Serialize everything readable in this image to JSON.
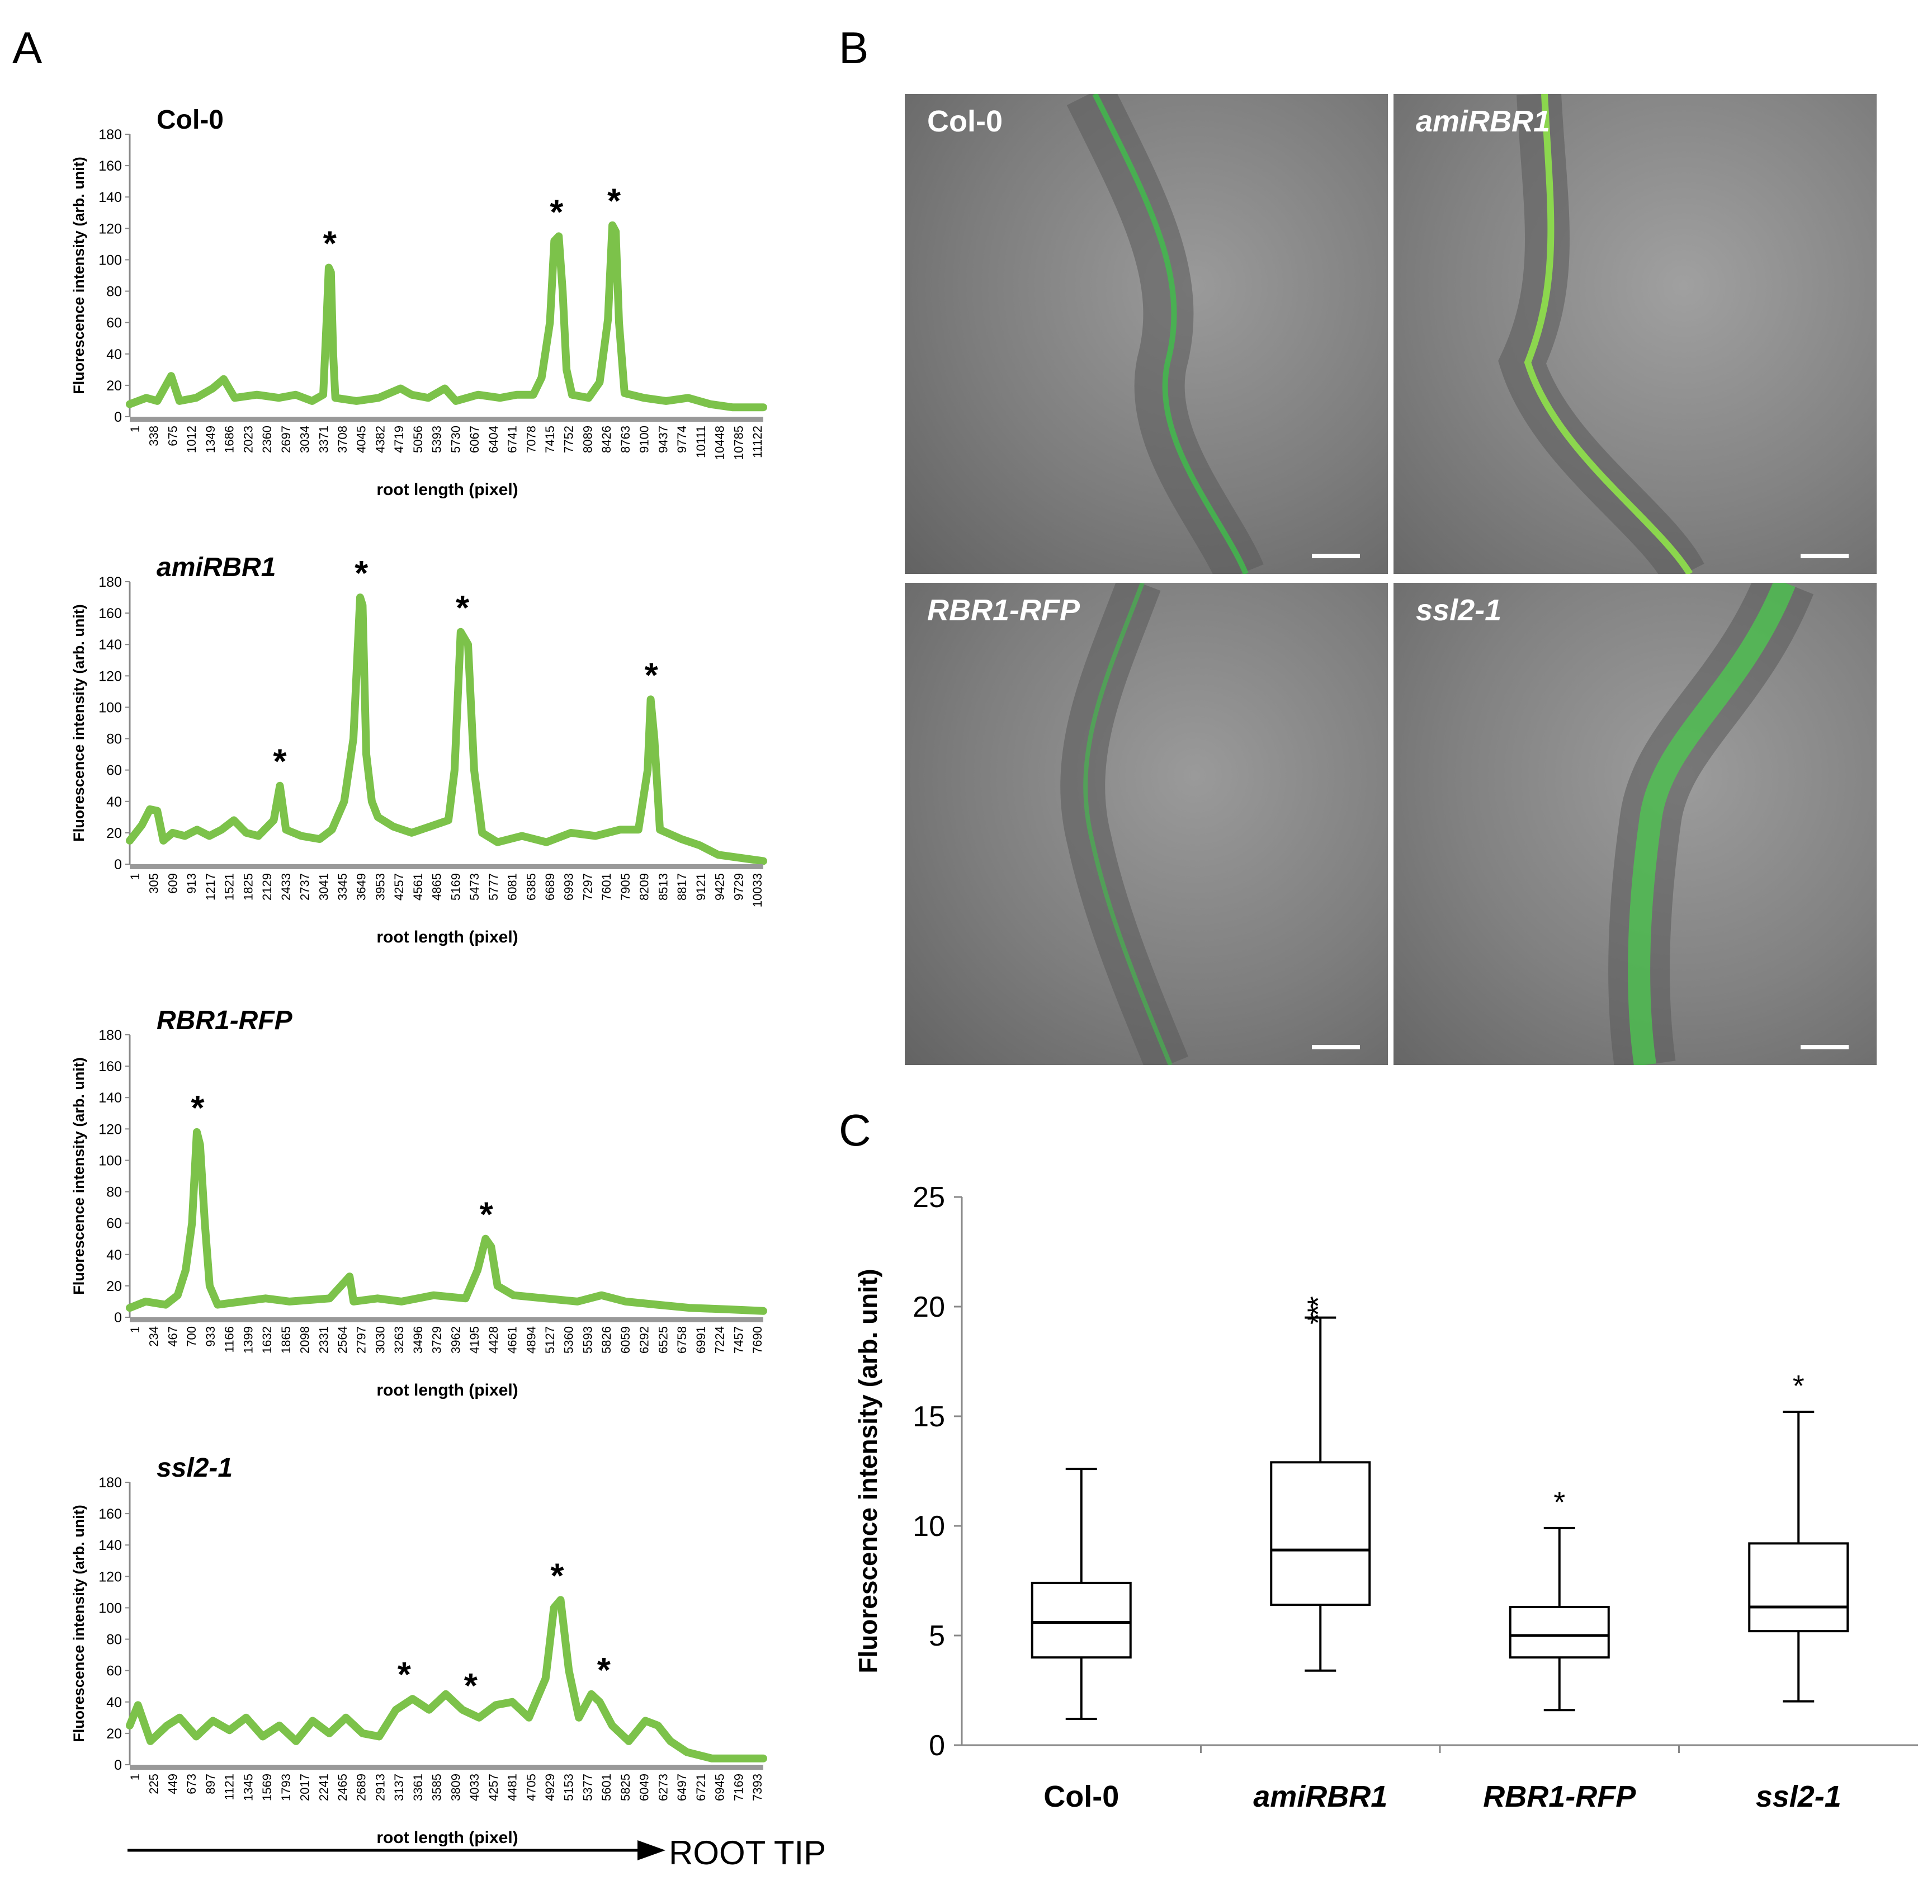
{
  "panels": {
    "A": "A",
    "B": "B",
    "C": "C"
  },
  "panel_a": {
    "ylabel": "Fluorescence intensity (arb. unit)",
    "xlabel": "root length (pixel)",
    "yticks": [
      "0",
      "20",
      "40",
      "60",
      "80",
      "100",
      "120",
      "140",
      "160",
      "180"
    ],
    "arrow_label": "ROOT TIP",
    "line_color": "#7cc24a"
  },
  "chart_data": [
    {
      "type": "line",
      "title": "Col-0",
      "title_italic": false,
      "xlabel": "root length (pixel)",
      "ylabel": "Fluorescence intensity (arb. unit)",
      "ylim": [
        0,
        180
      ],
      "xlim": [
        1,
        11459
      ],
      "x_tick_labels": [
        "1",
        "338",
        "675",
        "1012",
        "1349",
        "1686",
        "2023",
        "2360",
        "2697",
        "3034",
        "3371",
        "3708",
        "4045",
        "4382",
        "4719",
        "5056",
        "5393",
        "5730",
        "6067",
        "6404",
        "6741",
        "7078",
        "7415",
        "7752",
        "8089",
        "8426",
        "8763",
        "9100",
        "9437",
        "9774",
        "10111",
        "10448",
        "10785",
        "11122"
      ],
      "series": [
        {
          "values": [
            [
              1,
              8
            ],
            [
              300,
              12
            ],
            [
              500,
              10
            ],
            [
              750,
              26
            ],
            [
              900,
              10
            ],
            [
              1200,
              12
            ],
            [
              1500,
              18
            ],
            [
              1700,
              24
            ],
            [
              1900,
              12
            ],
            [
              2300,
              14
            ],
            [
              2700,
              12
            ],
            [
              3000,
              14
            ],
            [
              3300,
              10
            ],
            [
              3500,
              14
            ],
            [
              3560,
              60
            ],
            [
              3600,
              95
            ],
            [
              3640,
              92
            ],
            [
              3680,
              40
            ],
            [
              3720,
              12
            ],
            [
              4100,
              10
            ],
            [
              4500,
              12
            ],
            [
              4900,
              18
            ],
            [
              5100,
              14
            ],
            [
              5400,
              12
            ],
            [
              5700,
              18
            ],
            [
              5900,
              10
            ],
            [
              6300,
              14
            ],
            [
              6700,
              12
            ],
            [
              7000,
              14
            ],
            [
              7300,
              14
            ],
            [
              7450,
              25
            ],
            [
              7600,
              60
            ],
            [
              7680,
              112
            ],
            [
              7760,
              115
            ],
            [
              7830,
              80
            ],
            [
              7900,
              30
            ],
            [
              8000,
              14
            ],
            [
              8300,
              12
            ],
            [
              8500,
              22
            ],
            [
              8650,
              62
            ],
            [
              8730,
              122
            ],
            [
              8790,
              118
            ],
            [
              8850,
              60
            ],
            [
              8950,
              15
            ],
            [
              9300,
              12
            ],
            [
              9700,
              10
            ],
            [
              10100,
              12
            ],
            [
              10500,
              8
            ],
            [
              10900,
              6
            ],
            [
              11459,
              6
            ]
          ]
        }
      ],
      "asterisks_at_x": [
        3620,
        7720,
        8760
      ]
    },
    {
      "type": "line",
      "title": "amiRBR1",
      "title_italic": true,
      "xlabel": "root length (pixel)",
      "ylabel": "Fluorescence intensity (arb. unit)",
      "ylim": [
        0,
        180
      ],
      "xlim": [
        1,
        10337
      ],
      "x_tick_labels": [
        "1",
        "305",
        "609",
        "913",
        "1217",
        "1521",
        "1825",
        "2129",
        "2433",
        "2737",
        "3041",
        "3345",
        "3649",
        "3953",
        "4257",
        "4561",
        "4865",
        "5169",
        "5473",
        "5777",
        "6081",
        "6385",
        "6689",
        "6993",
        "7297",
        "7601",
        "7905",
        "8209",
        "8513",
        "8817",
        "9121",
        "9425",
        "9729",
        "10033"
      ],
      "series": [
        {
          "values": [
            [
              1,
              15
            ],
            [
              200,
              25
            ],
            [
              330,
              35
            ],
            [
              450,
              34
            ],
            [
              550,
              15
            ],
            [
              700,
              20
            ],
            [
              900,
              18
            ],
            [
              1100,
              22
            ],
            [
              1300,
              18
            ],
            [
              1500,
              22
            ],
            [
              1700,
              28
            ],
            [
              1900,
              20
            ],
            [
              2100,
              18
            ],
            [
              2350,
              28
            ],
            [
              2450,
              50
            ],
            [
              2550,
              22
            ],
            [
              2800,
              18
            ],
            [
              3100,
              16
            ],
            [
              3300,
              22
            ],
            [
              3500,
              40
            ],
            [
              3650,
              80
            ],
            [
              3760,
              170
            ],
            [
              3800,
              165
            ],
            [
              3860,
              70
            ],
            [
              3950,
              40
            ],
            [
              4050,
              30
            ],
            [
              4300,
              24
            ],
            [
              4600,
              20
            ],
            [
              4900,
              24
            ],
            [
              5200,
              28
            ],
            [
              5300,
              60
            ],
            [
              5400,
              148
            ],
            [
              5520,
              140
            ],
            [
              5620,
              60
            ],
            [
              5750,
              20
            ],
            [
              6000,
              14
            ],
            [
              6400,
              18
            ],
            [
              6800,
              14
            ],
            [
              7200,
              20
            ],
            [
              7600,
              18
            ],
            [
              8000,
              22
            ],
            [
              8300,
              22
            ],
            [
              8450,
              60
            ],
            [
              8500,
              105
            ],
            [
              8560,
              80
            ],
            [
              8650,
              22
            ],
            [
              9000,
              16
            ],
            [
              9300,
              12
            ],
            [
              9600,
              6
            ],
            [
              10337,
              2
            ]
          ]
        }
      ],
      "asterisks_at_x": [
        2450,
        3780,
        5430,
        8510
      ]
    },
    {
      "type": "line",
      "title": "RBR1-RFP",
      "title_italic": true,
      "xlabel": "root length (pixel)",
      "ylabel": "Fluorescence intensity (arb. unit)",
      "ylim": [
        0,
        180
      ],
      "xlim": [
        1,
        7923
      ],
      "x_tick_labels": [
        "1",
        "234",
        "467",
        "700",
        "933",
        "1166",
        "1399",
        "1632",
        "1865",
        "2098",
        "2331",
        "2564",
        "2797",
        "3030",
        "3263",
        "3496",
        "3729",
        "3962",
        "4195",
        "4428",
        "4661",
        "4894",
        "5127",
        "5360",
        "5593",
        "5826",
        "6059",
        "6292",
        "6525",
        "6758",
        "6991",
        "7224",
        "7457",
        "7690"
      ],
      "series": [
        {
          "values": [
            [
              1,
              6
            ],
            [
              200,
              10
            ],
            [
              450,
              8
            ],
            [
              600,
              14
            ],
            [
              700,
              30
            ],
            [
              780,
              60
            ],
            [
              840,
              118
            ],
            [
              880,
              110
            ],
            [
              940,
              60
            ],
            [
              1000,
              20
            ],
            [
              1100,
              8
            ],
            [
              1400,
              10
            ],
            [
              1700,
              12
            ],
            [
              2000,
              10
            ],
            [
              2500,
              12
            ],
            [
              2750,
              26
            ],
            [
              2800,
              10
            ],
            [
              3100,
              12
            ],
            [
              3400,
              10
            ],
            [
              3800,
              14
            ],
            [
              4200,
              12
            ],
            [
              4350,
              30
            ],
            [
              4450,
              50
            ],
            [
              4520,
              45
            ],
            [
              4600,
              20
            ],
            [
              4800,
              14
            ],
            [
              5200,
              12
            ],
            [
              5600,
              10
            ],
            [
              5900,
              14
            ],
            [
              6200,
              10
            ],
            [
              6600,
              8
            ],
            [
              7000,
              6
            ],
            [
              7500,
              5
            ],
            [
              7923,
              4
            ]
          ]
        }
      ],
      "asterisks_at_x": [
        850,
        4460
      ]
    },
    {
      "type": "line",
      "title": "ssl2-1",
      "title_italic": true,
      "xlabel": "root length (pixel)",
      "ylabel": "Fluorescence intensity (arb. unit)",
      "ylim": [
        0,
        180
      ],
      "xlim": [
        1,
        7617
      ],
      "x_tick_labels": [
        "1",
        "225",
        "449",
        "673",
        "897",
        "1121",
        "1345",
        "1569",
        "1793",
        "2017",
        "2241",
        "2465",
        "2689",
        "2913",
        "3137",
        "3361",
        "3585",
        "3809",
        "4033",
        "4257",
        "4481",
        "4705",
        "4929",
        "5153",
        "5377",
        "5601",
        "5825",
        "6049",
        "6273",
        "6497",
        "6721",
        "6945",
        "7169",
        "7393"
      ],
      "series": [
        {
          "values": [
            [
              1,
              25
            ],
            [
              100,
              38
            ],
            [
              250,
              15
            ],
            [
              450,
              25
            ],
            [
              600,
              30
            ],
            [
              800,
              18
            ],
            [
              1000,
              28
            ],
            [
              1200,
              22
            ],
            [
              1400,
              30
            ],
            [
              1600,
              18
            ],
            [
              1800,
              25
            ],
            [
              2000,
              15
            ],
            [
              2200,
              28
            ],
            [
              2400,
              20
            ],
            [
              2600,
              30
            ],
            [
              2800,
              20
            ],
            [
              3000,
              18
            ],
            [
              3200,
              35
            ],
            [
              3400,
              42
            ],
            [
              3600,
              35
            ],
            [
              3800,
              45
            ],
            [
              4000,
              35
            ],
            [
              4200,
              30
            ],
            [
              4400,
              38
            ],
            [
              4600,
              40
            ],
            [
              4800,
              30
            ],
            [
              5000,
              55
            ],
            [
              5100,
              100
            ],
            [
              5180,
              105
            ],
            [
              5280,
              60
            ],
            [
              5400,
              30
            ],
            [
              5550,
              45
            ],
            [
              5650,
              40
            ],
            [
              5800,
              25
            ],
            [
              6000,
              15
            ],
            [
              6200,
              28
            ],
            [
              6350,
              25
            ],
            [
              6500,
              15
            ],
            [
              6700,
              8
            ],
            [
              7000,
              4
            ],
            [
              7617,
              4
            ]
          ]
        }
      ],
      "asterisks_at_x": [
        3300,
        4100,
        5140,
        5700
      ]
    },
    {
      "type": "box",
      "ylabel": "Fluorescence intensity (arb. unit)",
      "ylim": [
        0,
        25
      ],
      "yticks": [
        "0",
        "5",
        "10",
        "15",
        "20",
        "25"
      ],
      "categories": [
        "Col-0",
        "amiRBR1",
        "RBR1-RFP",
        "ssl2-1"
      ],
      "categories_italic": [
        false,
        true,
        true,
        true
      ],
      "boxes": [
        {
          "min": 1.2,
          "q1": 4.0,
          "median": 5.6,
          "q3": 7.4,
          "max": 12.6,
          "significance": ""
        },
        {
          "min": 3.4,
          "q1": 6.4,
          "median": 8.9,
          "q3": 12.9,
          "max": 19.5,
          "significance": "***"
        },
        {
          "min": 1.6,
          "q1": 4.0,
          "median": 5.0,
          "q3": 6.3,
          "max": 9.9,
          "significance": "*"
        },
        {
          "min": 2.0,
          "q1": 5.2,
          "median": 6.3,
          "q3": 9.2,
          "max": 15.2,
          "significance": "*"
        }
      ]
    }
  ],
  "panel_b": {
    "images": [
      {
        "label": "Col-0",
        "italic": false
      },
      {
        "label": "amiRBR1",
        "italic": true
      },
      {
        "label": "RBR1-RFP",
        "italic": true
      },
      {
        "label": "ssl2-1",
        "italic": true
      }
    ]
  }
}
